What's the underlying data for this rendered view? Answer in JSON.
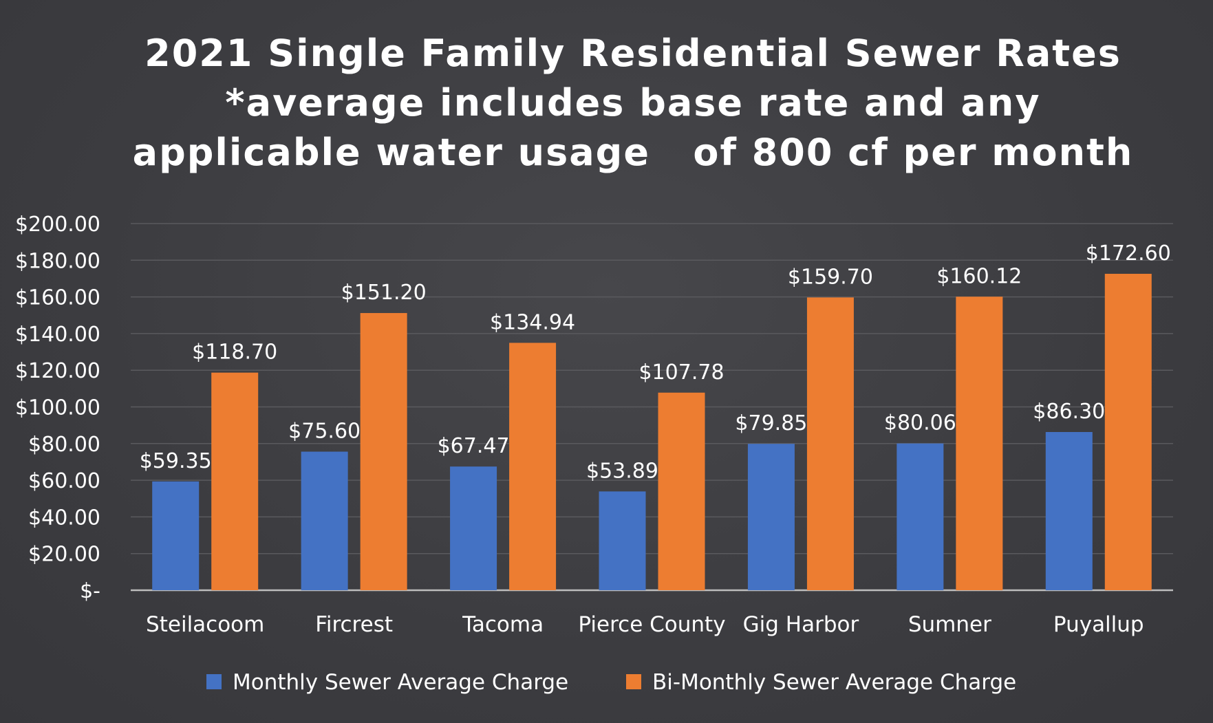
{
  "chart_data": {
    "type": "bar",
    "title_lines": [
      "2021 Single Family Residential Sewer Rates",
      "*average includes base rate and any",
      "applicable water usage   of 800 cf per month"
    ],
    "categories": [
      "Steilacoom",
      "Fircrest",
      "Tacoma",
      "Pierce County",
      "Gig Harbor",
      "Sumner",
      "Puyallup"
    ],
    "series": [
      {
        "name": "Monthly Sewer Average Charge",
        "color": "#4472c4",
        "values": [
          59.35,
          75.6,
          67.47,
          53.89,
          79.85,
          80.06,
          86.3
        ],
        "labels": [
          "$59.35",
          "$75.60",
          "$67.47",
          "$53.89",
          "$79.85",
          "$80.06",
          "$86.30"
        ]
      },
      {
        "name": "Bi-Monthly Sewer Average Charge",
        "color": "#ed7d31",
        "values": [
          118.7,
          151.2,
          134.94,
          107.78,
          159.7,
          160.12,
          172.6
        ],
        "labels": [
          "$118.70",
          "$151.20",
          "$134.94",
          "$107.78",
          "$159.70",
          "$160.12",
          "$172.60"
        ]
      }
    ],
    "ylim": [
      0,
      200
    ],
    "yticks": [
      0,
      20,
      40,
      60,
      80,
      100,
      120,
      140,
      160,
      180,
      200
    ],
    "ytick_labels": [
      "$-",
      "$20.00",
      "$40.00",
      "$60.00",
      "$80.00",
      "$100.00",
      "$120.00",
      "$140.00",
      "$160.00",
      "$180.00",
      "$200.00"
    ],
    "grid": true,
    "legend": "bottom",
    "colors": {
      "background": "#3f3f43",
      "text": "#ffffff",
      "grid": "#5a5a5e",
      "axis": "#bdbdbd"
    }
  }
}
